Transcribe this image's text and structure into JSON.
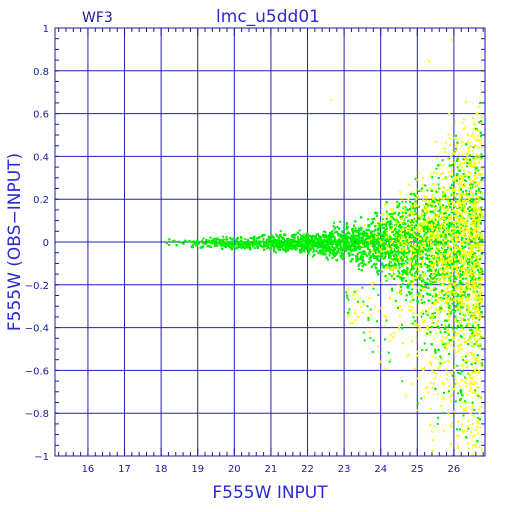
{
  "chart_data": {
    "type": "scatter",
    "panel_label": "WF3",
    "title": "lmc_u5dd01",
    "xlabel": "F555W INPUT",
    "ylabel": "F555W (OBS−INPUT)",
    "xlim": [
      15.1,
      26.85
    ],
    "ylim": [
      -1,
      1
    ],
    "x_ticks": [
      16,
      17,
      18,
      19,
      20,
      21,
      22,
      23,
      24,
      25,
      26
    ],
    "y_ticks": [
      -1,
      -0.8,
      -0.6,
      -0.4,
      -0.2,
      0,
      0.2,
      0.4,
      0.6,
      0.8,
      1
    ],
    "y_tick_labels": [
      "−1",
      "−0.8",
      "−0.6",
      "−0.4",
      "−0.2",
      "0",
      "0.2",
      "0.4",
      "0.6",
      "0.8",
      "1"
    ],
    "grid": true,
    "series": [
      {
        "color": "#00ee00",
        "description": "main population: tight locus near 0 at F555W 18, spread growing to about ±0.4 by 25.5 and beyond",
        "envelope": [
          [
            18.0,
            0.02
          ],
          [
            20.0,
            0.03
          ],
          [
            22.0,
            0.05
          ],
          [
            23.0,
            0.08
          ],
          [
            24.0,
            0.14
          ],
          [
            25.0,
            0.25
          ],
          [
            25.5,
            0.35
          ],
          [
            26.0,
            0.45
          ],
          [
            26.7,
            0.55
          ]
        ]
      },
      {
        "color": "#ffff00",
        "description": "fainter stars concentrated at F555W 25–26.7, skewed negative down to −1",
        "x_range": [
          23.0,
          26.75
        ],
        "y_range": [
          -1.0,
          0.65
        ]
      }
    ]
  },
  "colors": {
    "axes": "#1a1aa0",
    "grid": "#2020b0",
    "text": "#2a2ad0",
    "green_points": "#00ee00",
    "yellow_points": "#ffff00"
  }
}
